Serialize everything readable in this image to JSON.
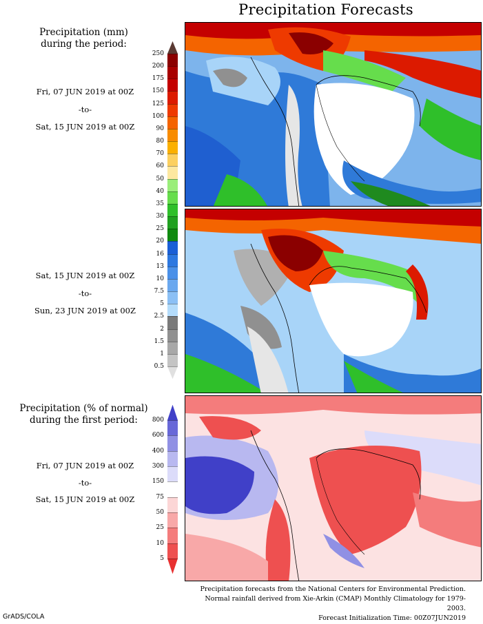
{
  "title": "Precipitation Forecasts",
  "period_heading": {
    "line1": "Precipitation (mm)",
    "line2": "during the period:"
  },
  "period1": {
    "start": "Fri, 07 JUN 2019 at 00Z",
    "sep": "-to-",
    "end": "Sat, 15 JUN 2019 at 00Z"
  },
  "period2": {
    "start": "Sat, 15 JUN 2019 at 00Z",
    "sep": "-to-",
    "end": "Sun, 23 JUN 2019 at 00Z"
  },
  "anomaly_heading": {
    "line1": "Precipitation (% of normal)",
    "line2": "during the first period:"
  },
  "period3": {
    "start": "Fri, 07 JUN 2019 at 00Z",
    "sep": "-to-",
    "end": "Sat, 15 JUN 2019 at 00Z"
  },
  "mm_scale": {
    "ticks": [
      "250",
      "200",
      "175",
      "150",
      "125",
      "100",
      "90",
      "80",
      "70",
      "60",
      "50",
      "40",
      "35",
      "30",
      "25",
      "20",
      "16",
      "13",
      "10",
      "7.5",
      "5",
      "2.5",
      "2",
      "1.5",
      "1",
      "0.5"
    ],
    "colors": [
      "#5a3a33",
      "#8b0000",
      "#a80000",
      "#c40000",
      "#dc1a00",
      "#ee3a00",
      "#f46400",
      "#f88c00",
      "#fbb000",
      "#fcd060",
      "#fde8a0",
      "#9aee7a",
      "#66dd4c",
      "#2fbf2a",
      "#20a020",
      "#108a10",
      "#1a5fd6",
      "#2d78e0",
      "#4a90e8",
      "#6aa8ef",
      "#8cc0f5",
      "#b4dcfb",
      "#7a7a7a",
      "#909090",
      "#a8a8a8",
      "#c4c4c4",
      "#e0e0e0"
    ]
  },
  "pct_scale": {
    "ticks": [
      "800",
      "600",
      "400",
      "300",
      "150",
      "75",
      "50",
      "25",
      "10",
      "5"
    ],
    "colors": [
      "#4040c8",
      "#6868d8",
      "#9090e4",
      "#b8b8f0",
      "#dcdcfa",
      "#ffffff",
      "#fcd6d6",
      "#f8a8a8",
      "#f47c7c",
      "#ee5050",
      "#e83030"
    ]
  },
  "footer": {
    "line1": "Precipitation forecasts from the National Centers for Environmental Prediction.",
    "line2": "Normal rainfall derived from Xie-Arkin (CMAP) Monthly Climatology for 1979-2003.",
    "line3": "Forecast Initialization Time: 00Z07JUN2019"
  },
  "credit": "GrADS/COLA"
}
